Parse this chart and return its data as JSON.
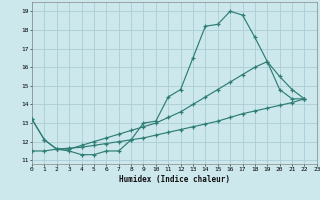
{
  "xlabel": "Humidex (Indice chaleur)",
  "bg_color": "#cce8ec",
  "grid_color": "#aacdd4",
  "line_color": "#2e7d74",
  "line1_x": [
    0,
    1,
    2,
    3,
    4,
    5,
    6,
    7,
    8,
    9,
    10,
    11,
    12,
    13,
    14,
    15,
    16,
    17,
    18,
    19,
    20,
    21,
    22
  ],
  "line1_y": [
    13.2,
    12.1,
    11.6,
    11.5,
    11.3,
    11.3,
    11.5,
    11.5,
    12.1,
    13.0,
    13.1,
    14.4,
    14.8,
    16.5,
    18.2,
    18.3,
    19.0,
    18.8,
    17.6,
    16.3,
    14.8,
    14.3,
    14.3
  ],
  "line2_x": [
    0,
    1,
    2,
    3,
    4,
    5,
    6,
    7,
    8,
    9,
    10,
    11,
    12,
    13,
    14,
    15,
    16,
    17,
    18,
    19,
    20,
    21,
    22
  ],
  "line2_y": [
    13.2,
    12.1,
    11.6,
    11.6,
    11.8,
    12.0,
    12.2,
    12.4,
    12.6,
    12.8,
    13.0,
    13.3,
    13.6,
    14.0,
    14.4,
    14.8,
    15.2,
    15.6,
    16.0,
    16.3,
    15.5,
    14.8,
    14.3
  ],
  "line3_x": [
    0,
    1,
    2,
    3,
    4,
    5,
    6,
    7,
    8,
    9,
    10,
    11,
    12,
    13,
    14,
    15,
    16,
    17,
    18,
    19,
    20,
    21,
    22
  ],
  "line3_y": [
    11.5,
    11.5,
    11.6,
    11.65,
    11.7,
    11.8,
    11.9,
    12.0,
    12.1,
    12.2,
    12.35,
    12.5,
    12.65,
    12.8,
    12.95,
    13.1,
    13.3,
    13.5,
    13.65,
    13.8,
    13.95,
    14.1,
    14.3
  ],
  "xlim": [
    0,
    23
  ],
  "ylim": [
    10.8,
    19.5
  ],
  "xticks": [
    0,
    1,
    2,
    3,
    4,
    5,
    6,
    7,
    8,
    9,
    10,
    11,
    12,
    13,
    14,
    15,
    16,
    17,
    18,
    19,
    20,
    21,
    22,
    23
  ],
  "yticks": [
    11,
    12,
    13,
    14,
    15,
    16,
    17,
    18,
    19
  ]
}
